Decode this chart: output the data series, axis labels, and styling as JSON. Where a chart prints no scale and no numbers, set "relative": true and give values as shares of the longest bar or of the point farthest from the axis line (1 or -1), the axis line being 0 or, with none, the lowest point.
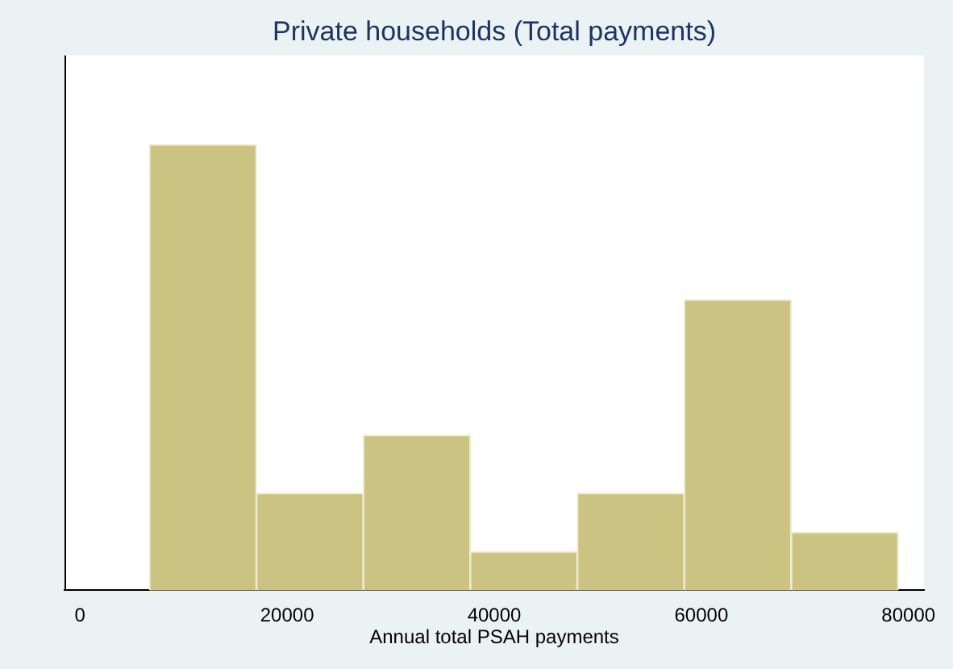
{
  "chart_data": {
    "type": "bar",
    "title": "Private households (Total payments)",
    "xlabel": "Annual total PSAH payments",
    "x": [
      11865,
      22195,
      32525,
      42855,
      53185,
      63515,
      73845
    ],
    "values": [
      1,
      0.218,
      0.348,
      0.087,
      0.218,
      0.652,
      0.13
    ],
    "color": "#cbc382",
    "relative": true,
    "xlim": [
      -1500,
      81500
    ],
    "xticks": [
      0,
      20000,
      40000,
      60000,
      80000
    ]
  }
}
